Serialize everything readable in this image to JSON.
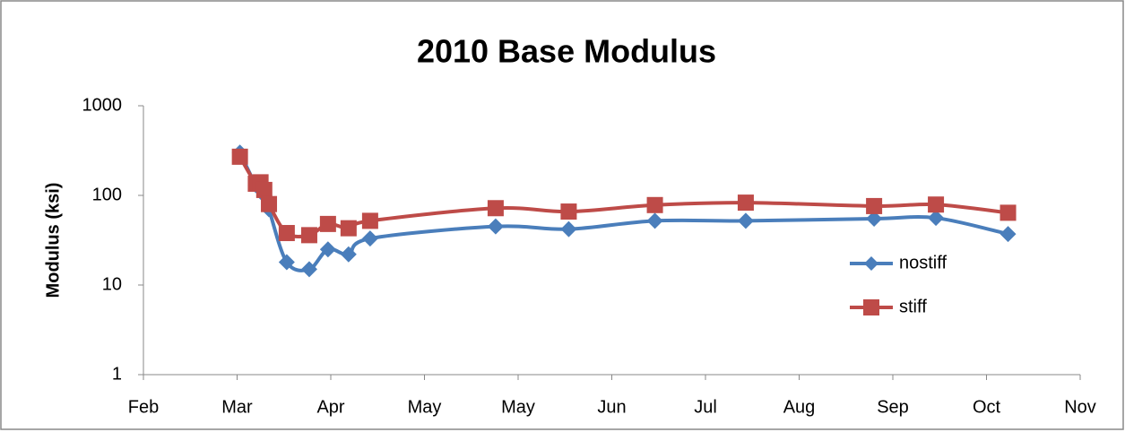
{
  "chart_data": {
    "type": "line",
    "title": "2010 Base Modulus",
    "y_label": "Modulus (ksi)",
    "x": [
      1.03,
      1.2,
      1.25,
      1.29,
      1.34,
      1.53,
      1.77,
      1.97,
      2.19,
      2.42,
      3.76,
      4.54,
      5.46,
      6.43,
      7.8,
      8.46,
      9.23
    ],
    "series": [
      {
        "name": "nostiff",
        "color": "#4a7ebb",
        "marker": "diamond",
        "values": [
          300,
          130,
          120,
          100,
          70,
          18,
          15,
          25,
          22,
          33,
          45,
          42,
          52,
          52,
          55,
          56,
          37
        ]
      },
      {
        "name": "stiff",
        "color": "#be4b48",
        "marker": "square",
        "values": [
          270,
          135,
          140,
          115,
          80,
          38,
          36,
          48,
          43,
          52,
          72,
          66,
          78,
          83,
          76,
          79,
          64
        ]
      }
    ],
    "xlim": [
      0,
      10
    ],
    "xticks": [
      {
        "value": 0,
        "label": "Feb"
      },
      {
        "value": 1,
        "label": "Mar"
      },
      {
        "value": 2,
        "label": "Apr"
      },
      {
        "value": 3,
        "label": "May"
      },
      {
        "value": 4,
        "label": "May"
      },
      {
        "value": 5,
        "label": "Jun"
      },
      {
        "value": 6,
        "label": "Jul"
      },
      {
        "value": 7,
        "label": "Aug"
      },
      {
        "value": 8,
        "label": "Sep"
      },
      {
        "value": 9,
        "label": "Oct"
      },
      {
        "value": 10,
        "label": "Nov"
      }
    ],
    "ylim": [
      1,
      1000
    ],
    "yticks": [
      1,
      10,
      100,
      1000
    ],
    "log_y": true,
    "grid": false,
    "legend": "right",
    "smooth": true
  }
}
